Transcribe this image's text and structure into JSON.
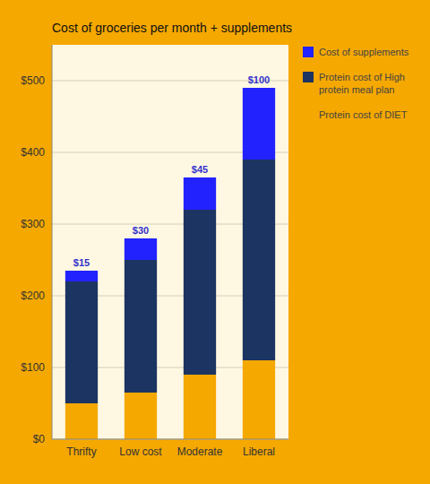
{
  "chart_data": {
    "type": "bar",
    "stacked": true,
    "title": "Cost of groceries per month + supplements",
    "categories": [
      "Thrifty",
      "Low cost",
      "Moderate",
      "Liberal"
    ],
    "series": [
      {
        "name": "Protein cost of DIET",
        "color": "#f5a800",
        "values": [
          50,
          65,
          90,
          110
        ]
      },
      {
        "name": "Protein cost of High\nprotein meal plan",
        "color": "#1c3461",
        "values": [
          170,
          185,
          230,
          280
        ]
      },
      {
        "name": "Cost of supplements",
        "color": "#2222ff",
        "values": [
          15,
          30,
          45,
          100
        ],
        "data_labels": true,
        "value_labels": [
          "$15",
          "$30",
          "$45",
          "$100"
        ]
      }
    ],
    "ylim": [
      0,
      550
    ],
    "yticks": [
      {
        "value": 0,
        "label": "$0"
      },
      {
        "value": 100,
        "label": "$100"
      },
      {
        "value": 200,
        "label": "$200"
      },
      {
        "value": 300,
        "label": "$300"
      },
      {
        "value": 400,
        "label": "$400"
      },
      {
        "value": 500,
        "label": "$500"
      }
    ],
    "grid": true,
    "legend": "right"
  }
}
